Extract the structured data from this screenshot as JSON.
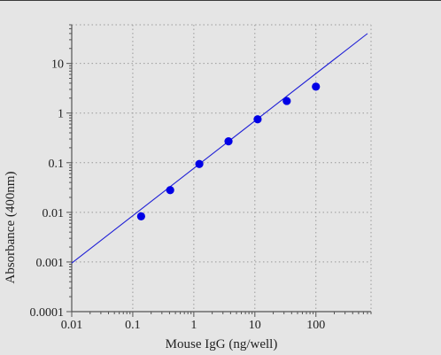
{
  "chart_data": {
    "type": "scatter",
    "xlabel": "Mouse IgG (ng/well)",
    "ylabel": "Absorbance (400nm)",
    "x_scale": "log",
    "y_scale": "log",
    "xlim": [
      0.01,
      800
    ],
    "ylim": [
      0.0001,
      60
    ],
    "x_ticks": [
      {
        "value": 0.01,
        "label": "0.01"
      },
      {
        "value": 0.1,
        "label": "0.1"
      },
      {
        "value": 1,
        "label": "1"
      },
      {
        "value": 10,
        "label": "10"
      },
      {
        "value": 100,
        "label": "100"
      }
    ],
    "y_ticks": [
      {
        "value": 0.0001,
        "label": "0.0001"
      },
      {
        "value": 0.001,
        "label": "0.001"
      },
      {
        "value": 0.01,
        "label": "0.01"
      },
      {
        "value": 0.1,
        "label": "0.1"
      },
      {
        "value": 1,
        "label": "1"
      },
      {
        "value": 10,
        "label": "10"
      }
    ],
    "grid": true,
    "points": [
      {
        "x": 0.137,
        "y": 0.0083
      },
      {
        "x": 0.41,
        "y": 0.028
      },
      {
        "x": 1.23,
        "y": 0.094
      },
      {
        "x": 3.7,
        "y": 0.27
      },
      {
        "x": 11.1,
        "y": 0.75
      },
      {
        "x": 33.3,
        "y": 1.75
      },
      {
        "x": 100,
        "y": 3.4
      }
    ],
    "fit_line": {
      "x": [
        0.01,
        700
      ],
      "y": [
        0.00095,
        40
      ]
    },
    "colors": {
      "points": "#0000e6",
      "line": "#1f1fd6",
      "grid": "#9a9a9a",
      "axis": "#555555",
      "background": "#e5e5e5"
    }
  }
}
